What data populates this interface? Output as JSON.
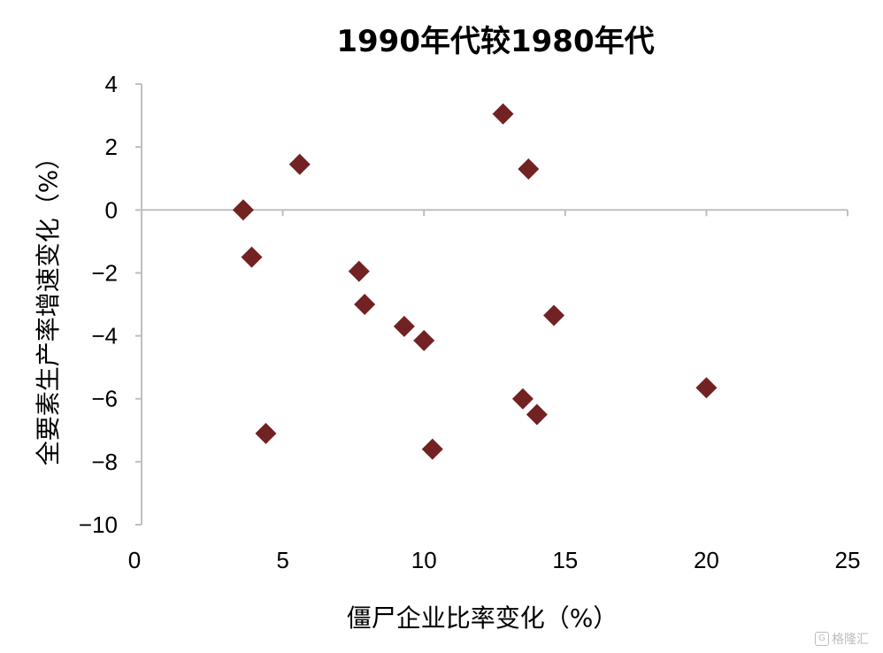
{
  "chart_data": {
    "type": "scatter",
    "title": "1990年代较1980年代",
    "xlabel": "僵尸企业比率变化（%）",
    "ylabel": "全要素生产率增速变化（%）",
    "xlim": [
      0,
      25
    ],
    "ylim": [
      -10,
      4
    ],
    "x_ticks": [
      0,
      5,
      10,
      15,
      20,
      25
    ],
    "y_ticks": [
      4,
      2,
      0,
      -2,
      -4,
      -6,
      -8,
      -10
    ],
    "x_tick_labels": [
      "0",
      "5",
      "10",
      "15",
      "20",
      "25"
    ],
    "y_tick_labels": [
      "4",
      "2",
      "0",
      "−2",
      "−4",
      "−6",
      "−8",
      "−10"
    ],
    "grid": false,
    "marker": "diamond",
    "color": "#722222",
    "axis_color": "#bfbfbf",
    "points": [
      {
        "x": 3.6,
        "y": 0.0
      },
      {
        "x": 3.9,
        "y": -1.5
      },
      {
        "x": 4.4,
        "y": -7.1
      },
      {
        "x": 5.6,
        "y": 1.45
      },
      {
        "x": 7.7,
        "y": -1.95
      },
      {
        "x": 7.9,
        "y": -3.0
      },
      {
        "x": 9.3,
        "y": -3.7
      },
      {
        "x": 10.0,
        "y": -4.15
      },
      {
        "x": 10.3,
        "y": -7.6
      },
      {
        "x": 12.8,
        "y": 3.05
      },
      {
        "x": 13.5,
        "y": -6.0
      },
      {
        "x": 13.7,
        "y": 1.3
      },
      {
        "x": 14.0,
        "y": -6.5
      },
      {
        "x": 14.6,
        "y": -3.35
      },
      {
        "x": 20.0,
        "y": -5.65
      }
    ]
  },
  "watermark": {
    "icon": "gelonghui-logo-icon",
    "text": "格隆汇"
  }
}
